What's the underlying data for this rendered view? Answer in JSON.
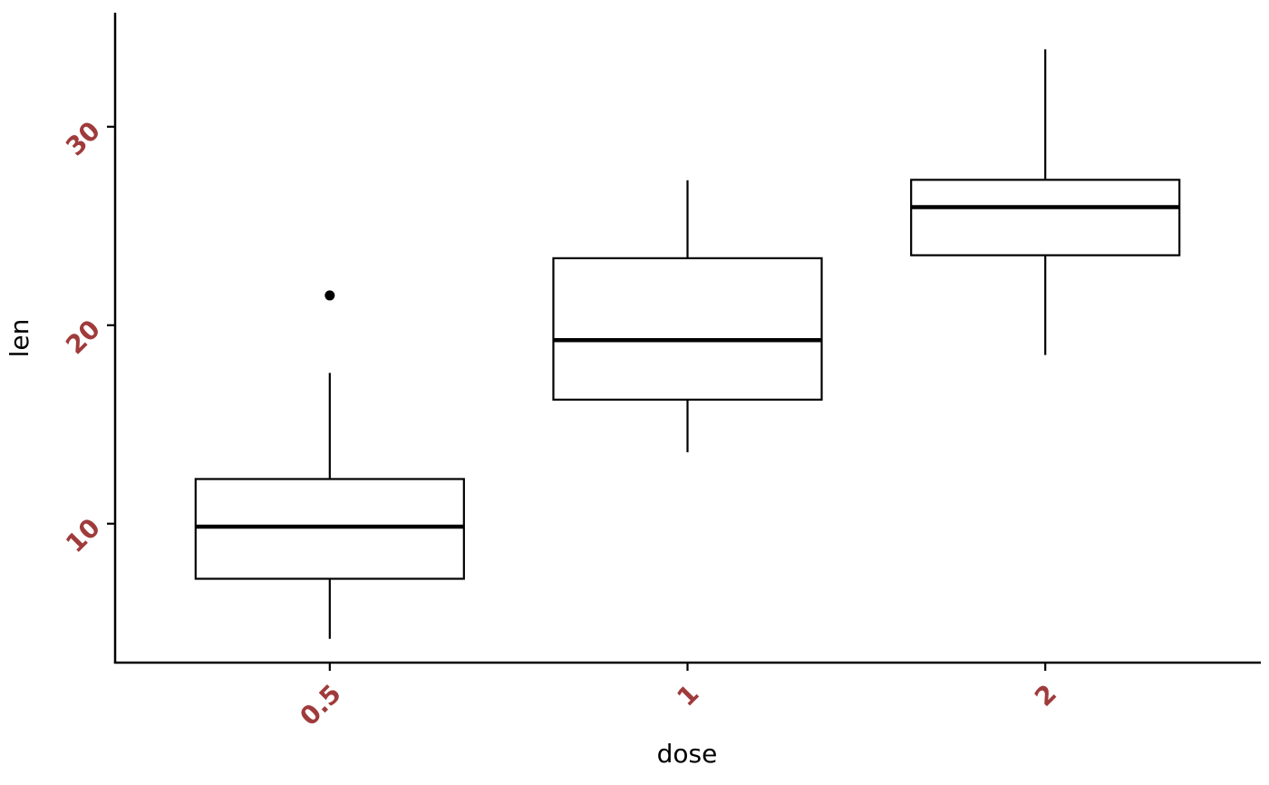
{
  "page": {
    "background": "#ffffff"
  },
  "chart_data": {
    "type": "boxplot",
    "title": "",
    "xlabel": "dose",
    "ylabel": "len",
    "categories": [
      "0.5",
      "1",
      "2"
    ],
    "y_ticks": [
      10,
      20,
      30
    ],
    "ylim": [
      3,
      35.7
    ],
    "band_expand": 0.6,
    "box_width_ratio": 0.75,
    "grid": false,
    "legend": "none",
    "series": [
      {
        "category": "0.5",
        "lower_whisker": 4.2,
        "q1": 7.225,
        "median": 9.85,
        "q3": 12.25,
        "upper_whisker": 17.6,
        "outliers": [
          21.5
        ]
      },
      {
        "category": "1",
        "lower_whisker": 13.6,
        "q1": 16.25,
        "median": 19.25,
        "q3": 23.375,
        "upper_whisker": 27.3,
        "outliers": []
      },
      {
        "category": "2",
        "lower_whisker": 18.5,
        "q1": 23.525,
        "median": 25.95,
        "q3": 27.325,
        "upper_whisker": 33.9,
        "outliers": []
      }
    ],
    "style": {
      "tick_label_color": "#a03b3b",
      "axis_color": "#000000",
      "box_fill": "#ffffff",
      "box_stroke": "#000000",
      "tick_label_rotation": 45,
      "background": "#ffffff"
    }
  }
}
